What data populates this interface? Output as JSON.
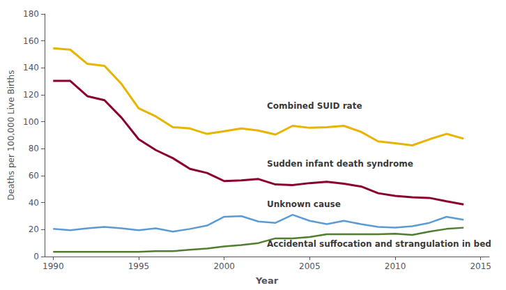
{
  "chart_data": {
    "type": "line",
    "xlabel": "Year",
    "ylabel": "Deaths per 100,000 Live Births",
    "x": [
      1990,
      1991,
      1992,
      1993,
      1994,
      1995,
      1996,
      1997,
      1998,
      1999,
      2000,
      2001,
      2002,
      2003,
      2004,
      2005,
      2006,
      2007,
      2008,
      2009,
      2010,
      2011,
      2012,
      2013,
      2014
    ],
    "series": [
      {
        "color": "#E8B400",
        "values": [
          154.5,
          153.5,
          143.0,
          141.5,
          128.0,
          110.0,
          104.0,
          96.0,
          95.0,
          91.0,
          93.0,
          95.0,
          93.5,
          90.5,
          97.0,
          95.5,
          96.0,
          97.0,
          92.5,
          85.5,
          84.0,
          82.5,
          87.0,
          91.0,
          87.5
        ]
      },
      {
        "color": "#8B0030",
        "values": [
          130.3,
          130.3,
          119.0,
          116.0,
          103.0,
          87.0,
          79.0,
          73.0,
          65.0,
          62.0,
          56.0,
          56.5,
          57.5,
          53.5,
          53.0,
          54.5,
          55.5,
          54.0,
          52.0,
          47.0,
          45.0,
          44.0,
          43.5,
          41.0,
          38.7
        ]
      },
      {
        "color": "#5B9BD5",
        "values": [
          20.5,
          19.5,
          21.0,
          22.0,
          21.0,
          19.5,
          21.0,
          18.5,
          20.5,
          23.0,
          29.5,
          30.0,
          26.0,
          25.0,
          31.0,
          26.5,
          24.0,
          26.5,
          24.0,
          22.0,
          21.5,
          22.5,
          25.0,
          29.5,
          27.3
        ]
      },
      {
        "color": "#4E7E2E",
        "values": [
          3.5,
          3.5,
          3.5,
          3.5,
          3.5,
          3.5,
          4.0,
          4.0,
          5.0,
          6.0,
          7.5,
          8.5,
          10.0,
          13.5,
          13.5,
          14.5,
          16.5,
          16.5,
          16.5,
          16.5,
          17.0,
          16.0,
          18.5,
          20.5,
          21.4
        ]
      }
    ],
    "xlim": [
      1989.5,
      2015.5
    ],
    "xticks": [
      1990,
      1995,
      2000,
      2005,
      2010,
      2015
    ],
    "ylim": [
      0,
      180
    ],
    "yticks": [
      0,
      20,
      40,
      60,
      80,
      100,
      120,
      140,
      160,
      180
    ],
    "grid": false,
    "annotations": [
      {
        "text": "Combined SUID rate",
        "x": 2002.5,
        "y": 108
      },
      {
        "text": "Sudden infant death syndrome",
        "x": 2002.5,
        "y": 65
      },
      {
        "text": "Unknown cause",
        "x": 2002.5,
        "y": 35
      },
      {
        "text": "Accidental suffocation and strangulation in bed",
        "x": 2002.5,
        "y": 5.5
      }
    ]
  }
}
